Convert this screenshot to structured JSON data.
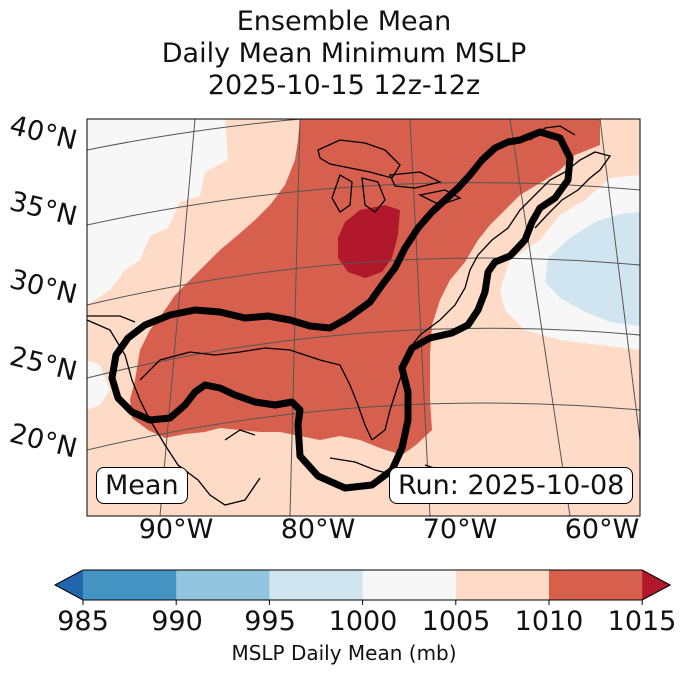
{
  "title": {
    "line1": "Ensemble Mean",
    "line2": "Daily Mean Minimum MSLP",
    "line3": "2025-10-15 12z-12z"
  },
  "map": {
    "lat_labels": [
      "40°N",
      "35°N",
      "30°N",
      "25°N",
      "20°N"
    ],
    "lon_labels": [
      "90°W",
      "80°W",
      "70°W",
      "60°W"
    ],
    "mean_label": "Mean",
    "run_label": "Run: 2025-10-08"
  },
  "colorbar": {
    "label": "MSLP Daily Mean (mb)",
    "ticks": [
      "985",
      "990",
      "995",
      "1000",
      "1005",
      "1010",
      "1015"
    ],
    "bins": [
      {
        "range": "<985",
        "color": "#2166ac"
      },
      {
        "range": "985-990",
        "color": "#4393c3"
      },
      {
        "range": "990-995",
        "color": "#92c5de"
      },
      {
        "range": "995-1000",
        "color": "#d1e5f0"
      },
      {
        "range": "1000-1005",
        "color": "#f7f7f7"
      },
      {
        "range": "1005-1010",
        "color": "#fddbc7"
      },
      {
        "range": "1010-1015",
        "color": "#d6604d"
      },
      {
        "range": ">1015",
        "color": "#b2182b"
      }
    ]
  }
}
